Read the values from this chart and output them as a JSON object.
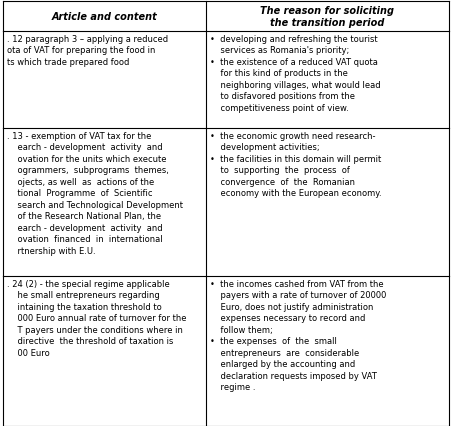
{
  "col1_header": "Article and content",
  "col2_header": "The reason for soliciting\nthe transition period",
  "rows": [
    {
      "col1": ". 12 paragraph 3 – applying a reduced\nota of VAT for preparing the food in\nts which trade prepared food",
      "col2": "•  developing and refreshing the tourist\n    services as Romania's priority;\n•  the existence of a reduced VAT quota\n    for this kind of products in the\n    neighboring villages, what would lead\n    to disfavored positions from the\n    competitiveness point of view."
    },
    {
      "col1": ". 13 - exemption of VAT tax for the\n    earch - development  activity  and\n    ovation for the units which execute\n    ogrammers,  subprograms  themes,\n    ojects, as well  as  actions of the\n    tional  Programme  of  Scientific\n    search and Technological Development\n    of the Research National Plan, the\n    earch - development  activity  and\n    ovation  financed  in  international\n    rtnership with E.U.",
      "col2": "•  the economic growth need research-\n    development activities;\n•  the facilities in this domain will permit\n    to  supporting  the  process  of\n    convergence  of  the  Romanian\n    economy with the European economy."
    },
    {
      "col1": ". 24 (2) - the special regime applicable\n    he small entrepreneurs regarding\n    intaining the taxation threshold to\n    000 Euro annual rate of turnover for the\n    T payers under the conditions where in\n    directive  the threshold of taxation is\n    00 Euro",
      "col2": "•  the incomes cashed from VAT from the\n    payers with a rate of turnover of 20000\n    Euro, does not justify administration\n    expenses necessary to record and\n    follow them;\n•  the expenses  of  the  small\n    entrepreneurs  are  considerable\n    enlarged by the accounting and\n    declaration requests imposed by VAT\n    regime ."
    }
  ],
  "bg_color": "#ffffff",
  "border_color": "#000000",
  "text_color": "#000000",
  "font_size": 6.0,
  "header_font_size": 7.0
}
